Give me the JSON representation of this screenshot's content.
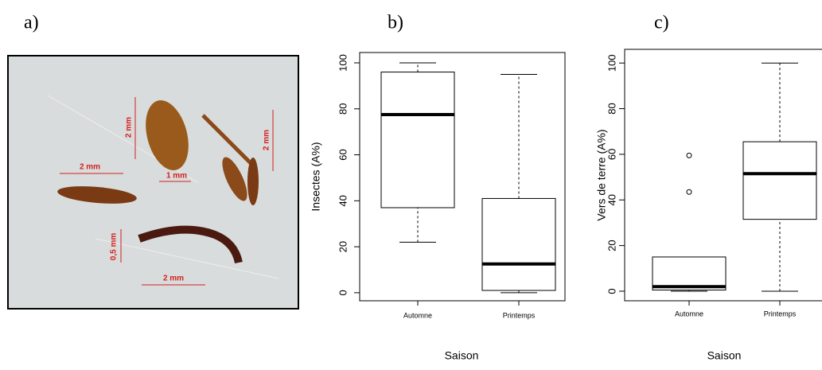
{
  "panel_labels": [
    "a)",
    "b)",
    "c)"
  ],
  "photo": {
    "scale_labels": [
      "2 mm",
      "2 mm",
      "1 mm",
      "2 mm",
      "0,5 mm",
      "2 mm"
    ]
  },
  "chart_data": [
    {
      "type": "box",
      "x_label": "Saison",
      "y_label": "Insectes (A%)",
      "categories": [
        "Automne",
        "Printemps"
      ],
      "boxes": [
        {
          "min": 22,
          "q1": 37,
          "median": 77.5,
          "q3": 96,
          "max": 100,
          "outliers": []
        },
        {
          "min": 0,
          "q1": 1,
          "median": 12.5,
          "q3": 41,
          "max": 95,
          "outliers": []
        }
      ],
      "ylim": [
        -3.5,
        104.5
      ],
      "yticks": [
        0,
        20,
        40,
        60,
        80,
        100
      ]
    },
    {
      "type": "box",
      "x_label": "Saison",
      "y_label": "Vers de terre (A%)",
      "categories": [
        "Automne",
        "Printemps"
      ],
      "boxes": [
        {
          "min": 0,
          "q1": 0.5,
          "median": 2,
          "q3": 15,
          "max": 15,
          "outliers": [
            43.5,
            59.5
          ]
        },
        {
          "min": 0,
          "q1": 31.5,
          "median": 51.5,
          "q3": 65.5,
          "max": 100,
          "outliers": []
        }
      ],
      "ylim": [
        -4.2,
        106
      ],
      "yticks": [
        0,
        20,
        40,
        60,
        80,
        100
      ]
    }
  ]
}
